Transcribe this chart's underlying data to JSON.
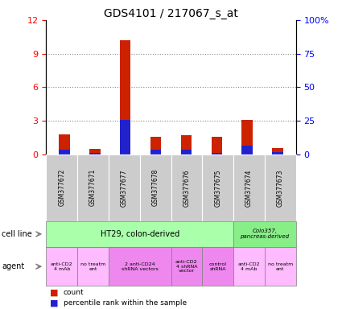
{
  "title": "GDS4101 / 217067_s_at",
  "samples": [
    "GSM377672",
    "GSM377671",
    "GSM377677",
    "GSM377678",
    "GSM377676",
    "GSM377675",
    "GSM377674",
    "GSM377673"
  ],
  "count_values": [
    1.8,
    0.5,
    10.2,
    1.6,
    1.7,
    1.6,
    3.1,
    0.6
  ],
  "percentile_values": [
    3.5,
    1.2,
    26.0,
    3.5,
    3.5,
    1.2,
    6.5,
    2.0
  ],
  "ylim_left": [
    0,
    12
  ],
  "ylim_right": [
    0,
    100
  ],
  "yticks_left": [
    0,
    3,
    6,
    9,
    12
  ],
  "yticks_right": [
    0,
    25,
    50,
    75,
    100
  ],
  "ytick_labels_right": [
    "0",
    "25",
    "50",
    "75",
    "100%"
  ],
  "count_color": "#cc2200",
  "percentile_color": "#2222cc",
  "sample_box_color": "#cccccc",
  "background_color": "#ffffff",
  "grid_color": "#888888",
  "ht29_color": "#aaffaa",
  "colo357_color": "#88ee88",
  "agent_light_color": "#ffbbff",
  "agent_dark_color": "#ee88ee",
  "agent_groups": [
    {
      "label": "anti-CD2\n4 mAb",
      "start": 0,
      "end": 0,
      "color_key": "agent_light_color"
    },
    {
      "label": "no treatm\nent",
      "start": 1,
      "end": 1,
      "color_key": "agent_light_color"
    },
    {
      "label": "2 anti-CD24\nshRNA vectors",
      "start": 2,
      "end": 3,
      "color_key": "agent_dark_color"
    },
    {
      "label": "anti-CD2\n4 shRNA\nvector",
      "start": 4,
      "end": 4,
      "color_key": "agent_dark_color"
    },
    {
      "label": "control\nshRNA",
      "start": 5,
      "end": 5,
      "color_key": "agent_dark_color"
    },
    {
      "label": "anti-CD2\n4 mAb",
      "start": 6,
      "end": 6,
      "color_key": "agent_light_color"
    },
    {
      "label": "no treatm\nent",
      "start": 7,
      "end": 7,
      "color_key": "agent_light_color"
    }
  ]
}
